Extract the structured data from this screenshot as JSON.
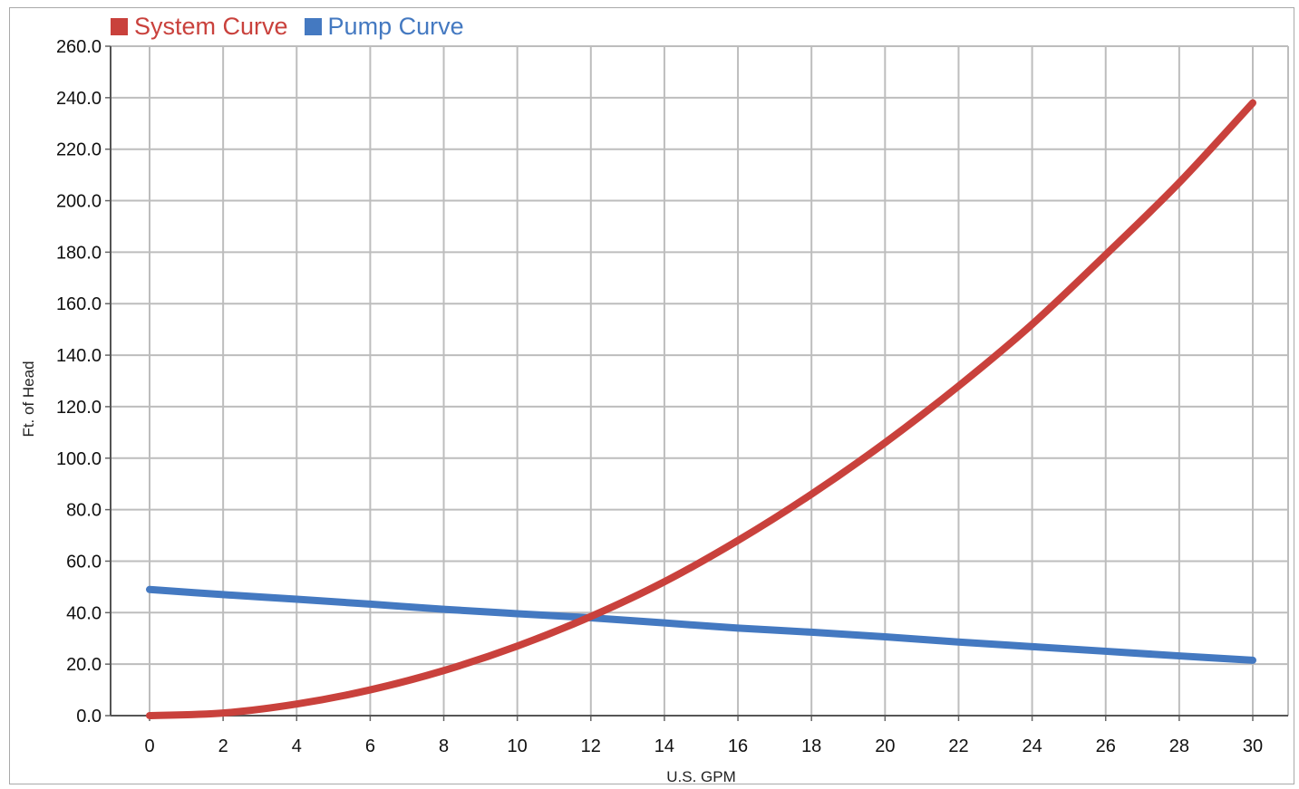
{
  "chart_data": {
    "type": "line",
    "title": "",
    "xlabel": "U.S. GPM",
    "ylabel": "Ft. of Head",
    "xlim": [
      0,
      30
    ],
    "ylim": [
      0,
      260
    ],
    "x_ticks": [
      "0",
      "2",
      "4",
      "6",
      "8",
      "10",
      "12",
      "14",
      "16",
      "18",
      "20",
      "22",
      "24",
      "26",
      "28",
      "30"
    ],
    "y_ticks": [
      "0.0",
      "20.0",
      "40.0",
      "60.0",
      "80.0",
      "100.0",
      "120.0",
      "140.0",
      "160.0",
      "180.0",
      "200.0",
      "220.0",
      "240.0",
      "260.0"
    ],
    "grid": true,
    "legend_position": "top-left",
    "x": [
      0,
      2,
      4,
      6,
      8,
      10,
      12,
      14,
      16,
      18,
      20,
      22,
      24,
      26,
      28,
      30
    ],
    "series": [
      {
        "name": "System Curve",
        "color": "#c9413c",
        "values": [
          0,
          1,
          4.5,
          10,
          17.5,
          27,
          38.5,
          52,
          68,
          86,
          106,
          128,
          152,
          179,
          207,
          238
        ]
      },
      {
        "name": "Pump Curve",
        "color": "#4479c1",
        "values": [
          49,
          47,
          45.2,
          43.3,
          41.3,
          39.6,
          38,
          36,
          34,
          32.4,
          30.6,
          28.6,
          26.8,
          25,
          23.2,
          21.5
        ]
      }
    ]
  }
}
